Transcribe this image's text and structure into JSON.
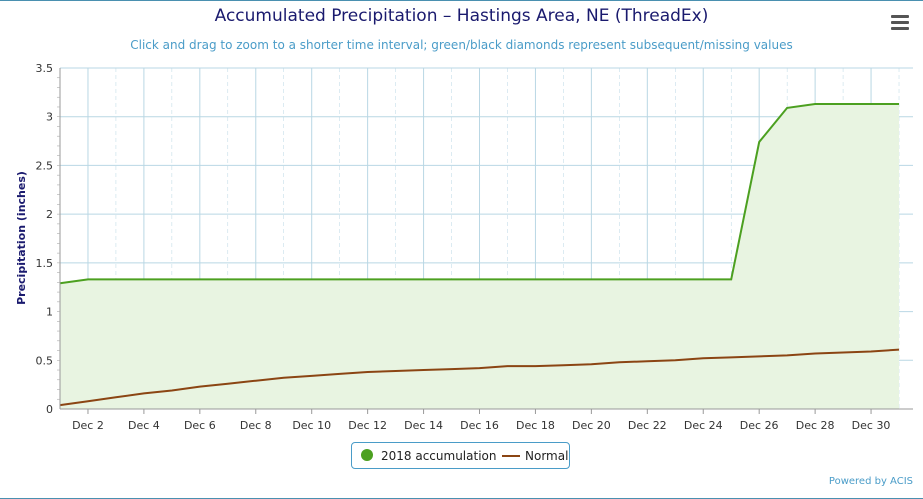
{
  "header": {
    "title": "Accumulated Precipitation – Hastings Area, NE (ThreadEx)",
    "subtitle": "Click and drag to zoom to a shorter time interval; green/black diamonds represent subsequent/missing values"
  },
  "menu_icon": "hamburger-menu-icon",
  "legend": {
    "items": [
      {
        "label": "2018 accumulation",
        "color": "#4ca020",
        "symbol": "circle"
      },
      {
        "label": "Normal",
        "color": "#8b4513",
        "symbol": "line"
      }
    ]
  },
  "credits": "Powered by ACIS",
  "colors": {
    "accum_line": "#4ca020",
    "accum_fill": "#e8f4e1",
    "normal_line": "#8b4513",
    "grid": "#b9d7e4"
  },
  "chart_data": {
    "type": "area",
    "title": "Accumulated Precipitation – Hastings Area, NE (ThreadEx)",
    "ylabel": "Precipitation (inches)",
    "xlabel": "",
    "ylim": [
      0,
      3.5
    ],
    "xlim": [
      1,
      31.5
    ],
    "yticks": [
      "0",
      "0.5",
      "1",
      "1.5",
      "2",
      "2.5",
      "3",
      "3.5"
    ],
    "xticks": [
      "Dec 2",
      "Dec 4",
      "Dec 6",
      "Dec 8",
      "Dec 10",
      "Dec 12",
      "Dec 14",
      "Dec 16",
      "Dec 18",
      "Dec 20",
      "Dec 22",
      "Dec 24",
      "Dec 26",
      "Dec 28",
      "Dec 30"
    ],
    "grid": true,
    "legend_position": "bottom-center",
    "x": [
      1,
      2,
      3,
      4,
      5,
      6,
      7,
      8,
      9,
      10,
      11,
      12,
      13,
      14,
      15,
      16,
      17,
      18,
      19,
      20,
      21,
      22,
      23,
      24,
      25,
      26,
      27,
      28,
      29,
      30,
      31
    ],
    "series": [
      {
        "name": "2018 accumulation",
        "type": "area",
        "values": [
          1.29,
          1.33,
          1.33,
          1.33,
          1.33,
          1.33,
          1.33,
          1.33,
          1.33,
          1.33,
          1.33,
          1.33,
          1.33,
          1.33,
          1.33,
          1.33,
          1.33,
          1.33,
          1.33,
          1.33,
          1.33,
          1.33,
          1.33,
          1.33,
          1.33,
          2.74,
          3.09,
          3.13,
          3.13,
          3.13,
          3.13
        ]
      },
      {
        "name": "Normal",
        "type": "line",
        "values": [
          0.04,
          0.08,
          0.12,
          0.16,
          0.19,
          0.23,
          0.26,
          0.29,
          0.32,
          0.34,
          0.36,
          0.38,
          0.39,
          0.4,
          0.41,
          0.42,
          0.44,
          0.44,
          0.45,
          0.46,
          0.48,
          0.49,
          0.5,
          0.52,
          0.53,
          0.54,
          0.55,
          0.57,
          0.58,
          0.59,
          0.61
        ]
      }
    ]
  }
}
